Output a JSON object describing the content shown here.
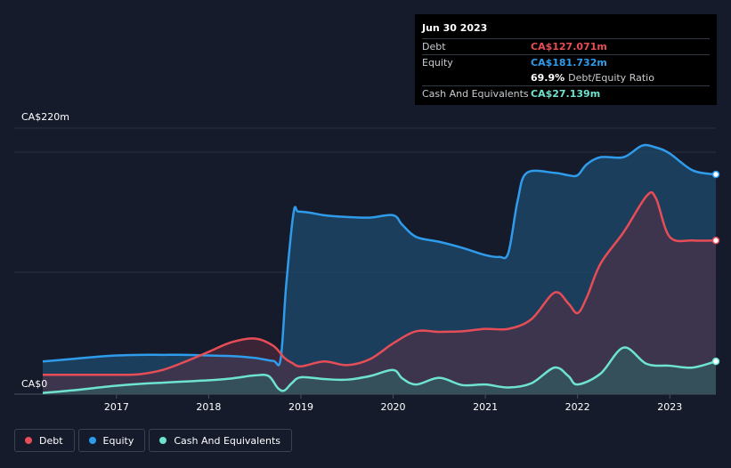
{
  "tooltip": {
    "date": "Jun 30 2023",
    "debt_label": "Debt",
    "debt_value": "CA$127.071m",
    "equity_label": "Equity",
    "equity_value": "CA$181.732m",
    "ratio_value": "69.9%",
    "ratio_label": "Debt/Equity Ratio",
    "cash_label": "Cash And Equivalents",
    "cash_value": "CA$27.139m"
  },
  "legend": {
    "debt": "Debt",
    "equity": "Equity",
    "cash": "Cash And Equivalents"
  },
  "colors": {
    "debt": "#e64d57",
    "equity": "#2f9ceb",
    "cash": "#6ee3cf",
    "background": "#151b2a"
  },
  "chart_data": {
    "type": "area",
    "ylim": [
      0,
      220
    ],
    "y_tick_labels": [
      "CA$0",
      "CA$220m"
    ],
    "x_ticks": [
      2017,
      2018,
      2019,
      2020,
      2021,
      2022,
      2023
    ],
    "x_range": [
      2016.2,
      2023.5
    ],
    "series": [
      {
        "name": "Equity",
        "points": [
          [
            2016.2,
            27
          ],
          [
            2016.5,
            29
          ],
          [
            2016.8,
            31
          ],
          [
            2017.0,
            32
          ],
          [
            2017.25,
            32.5
          ],
          [
            2017.5,
            32.5
          ],
          [
            2017.75,
            32.5
          ],
          [
            2018.0,
            32
          ],
          [
            2018.25,
            31.5
          ],
          [
            2018.5,
            30
          ],
          [
            2018.7,
            27.5
          ],
          [
            2018.78,
            29
          ],
          [
            2018.84,
            90
          ],
          [
            2018.92,
            150
          ],
          [
            2018.97,
            151
          ],
          [
            2019.1,
            150
          ],
          [
            2019.25,
            148
          ],
          [
            2019.5,
            146.5
          ],
          [
            2019.75,
            146
          ],
          [
            2020.0,
            148
          ],
          [
            2020.1,
            140
          ],
          [
            2020.25,
            130
          ],
          [
            2020.5,
            126
          ],
          [
            2020.75,
            121
          ],
          [
            2021.0,
            115
          ],
          [
            2021.15,
            113.5
          ],
          [
            2021.25,
            117
          ],
          [
            2021.35,
            160
          ],
          [
            2021.45,
            183
          ],
          [
            2021.75,
            183
          ],
          [
            2021.9,
            181
          ],
          [
            2022.0,
            181
          ],
          [
            2022.1,
            190
          ],
          [
            2022.25,
            196
          ],
          [
            2022.5,
            196
          ],
          [
            2022.7,
            205.5
          ],
          [
            2022.85,
            204
          ],
          [
            2023.0,
            199
          ],
          [
            2023.25,
            185
          ],
          [
            2023.5,
            181.7
          ]
        ]
      },
      {
        "name": "Debt",
        "points": [
          [
            2016.2,
            16
          ],
          [
            2016.5,
            16
          ],
          [
            2016.75,
            16
          ],
          [
            2017.0,
            16
          ],
          [
            2017.25,
            16.5
          ],
          [
            2017.5,
            20
          ],
          [
            2017.75,
            27
          ],
          [
            2018.0,
            35
          ],
          [
            2018.25,
            43
          ],
          [
            2018.5,
            46
          ],
          [
            2018.7,
            40
          ],
          [
            2018.82,
            30
          ],
          [
            2018.9,
            26
          ],
          [
            2019.0,
            23
          ],
          [
            2019.25,
            27
          ],
          [
            2019.5,
            24
          ],
          [
            2019.75,
            29
          ],
          [
            2020.0,
            42
          ],
          [
            2020.25,
            52
          ],
          [
            2020.5,
            51.5
          ],
          [
            2020.75,
            52
          ],
          [
            2021.0,
            54
          ],
          [
            2021.25,
            54
          ],
          [
            2021.5,
            62
          ],
          [
            2021.75,
            84
          ],
          [
            2021.9,
            75
          ],
          [
            2022.0,
            67
          ],
          [
            2022.1,
            80
          ],
          [
            2022.25,
            108
          ],
          [
            2022.5,
            134
          ],
          [
            2022.75,
            164
          ],
          [
            2022.85,
            162
          ],
          [
            2023.0,
            130
          ],
          [
            2023.25,
            127.1
          ],
          [
            2023.5,
            127.1
          ]
        ]
      },
      {
        "name": "Cash And Equivalents",
        "points": [
          [
            2016.2,
            1
          ],
          [
            2016.5,
            3
          ],
          [
            2016.75,
            5
          ],
          [
            2017.0,
            7
          ],
          [
            2017.25,
            8.5
          ],
          [
            2017.5,
            9.5
          ],
          [
            2017.75,
            10.5
          ],
          [
            2018.0,
            11.5
          ],
          [
            2018.25,
            13
          ],
          [
            2018.5,
            15.5
          ],
          [
            2018.65,
            15
          ],
          [
            2018.75,
            5
          ],
          [
            2018.82,
            3
          ],
          [
            2018.9,
            9
          ],
          [
            2019.0,
            14
          ],
          [
            2019.25,
            12.5
          ],
          [
            2019.5,
            12
          ],
          [
            2019.75,
            15
          ],
          [
            2020.0,
            20
          ],
          [
            2020.1,
            13
          ],
          [
            2020.25,
            8
          ],
          [
            2020.5,
            13.5
          ],
          [
            2020.75,
            7.5
          ],
          [
            2021.0,
            8
          ],
          [
            2021.25,
            5.5
          ],
          [
            2021.5,
            9
          ],
          [
            2021.75,
            22
          ],
          [
            2021.9,
            15
          ],
          [
            2022.0,
            8
          ],
          [
            2022.25,
            17
          ],
          [
            2022.5,
            38.5
          ],
          [
            2022.75,
            25
          ],
          [
            2023.0,
            23.5
          ],
          [
            2023.25,
            22
          ],
          [
            2023.5,
            27.1
          ]
        ]
      }
    ]
  }
}
